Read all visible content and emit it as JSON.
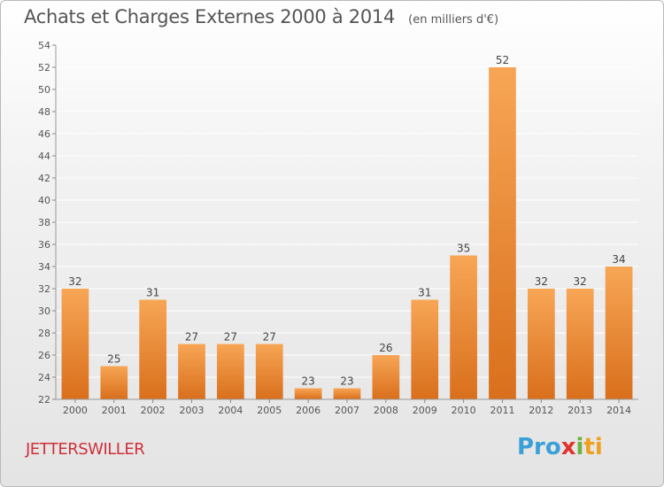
{
  "header": {
    "title": "Achats et Charges Externes 2000 à 2014",
    "subtitle": "(en milliers d'€)"
  },
  "footer": {
    "commune": "JETTERSWILLER",
    "logo": [
      "Pro",
      "x",
      "i",
      "ti"
    ]
  },
  "colors": {
    "bar_light": "#f7a655",
    "bar_dark": "#d96f1c",
    "commune_text": "#d0303a",
    "grid": "#ffffff"
  },
  "chart_data": {
    "type": "bar",
    "title": "Achats et Charges Externes 2000 à 2014",
    "subtitle": "(en milliers d'€)",
    "categories": [
      "2000",
      "2001",
      "2002",
      "2003",
      "2004",
      "2005",
      "2006",
      "2007",
      "2008",
      "2009",
      "2010",
      "2011",
      "2012",
      "2013",
      "2014"
    ],
    "values": [
      32,
      25,
      31,
      27,
      27,
      27,
      23,
      23,
      26,
      31,
      35,
      52,
      32,
      32,
      34
    ],
    "ylim": [
      22,
      54
    ],
    "yticks": [
      22,
      24,
      26,
      28,
      30,
      32,
      34,
      36,
      38,
      40,
      42,
      44,
      46,
      48,
      50,
      52,
      54
    ],
    "grid": true,
    "data_labels": true
  }
}
